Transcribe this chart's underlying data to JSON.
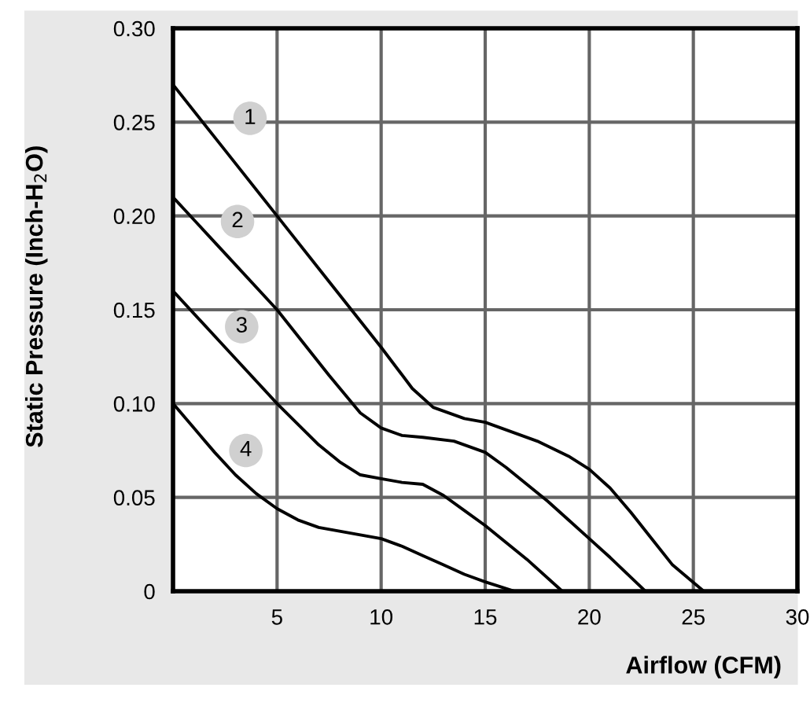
{
  "chart_data": {
    "type": "line",
    "xlabel": "Airflow (CFM)",
    "ylabel": "Static Pressure (Inch-H$_{2}$O)",
    "xlim": [
      0,
      30
    ],
    "ylim": [
      0,
      0.3
    ],
    "xticks": [
      {
        "value": 0,
        "label": null
      },
      5,
      10,
      15,
      20,
      25,
      30
    ],
    "yticks": [
      0,
      0.05,
      {
        "value": 0.1,
        "label": "0.10"
      },
      0.15,
      {
        "value": 0.2,
        "label": "0.20"
      },
      0.25,
      {
        "value": 0.3,
        "label": "0.30"
      }
    ],
    "grid": true,
    "legend": false,
    "marker": "none",
    "line_style": "solid",
    "series": [
      {
        "color": "#000000",
        "x": [
          0,
          2.5,
          5,
          7.5,
          10,
          11.5,
          12.5,
          14,
          15,
          17.5,
          19,
          20,
          21,
          22,
          23,
          24,
          25.5
        ],
        "values": [
          0.27,
          0.235,
          0.2,
          0.165,
          0.13,
          0.108,
          0.098,
          0.092,
          0.09,
          0.08,
          0.072,
          0.065,
          0.055,
          0.042,
          0.028,
          0.014,
          0
        ]
      },
      {
        "color": "#000000",
        "x": [
          0,
          2.5,
          5,
          7.5,
          9,
          10,
          11,
          12,
          13.5,
          15,
          16,
          17,
          18,
          19,
          20,
          21,
          22.7
        ],
        "values": [
          0.21,
          0.18,
          0.15,
          0.115,
          0.095,
          0.087,
          0.083,
          0.082,
          0.08,
          0.074,
          0.066,
          0.057,
          0.048,
          0.038,
          0.028,
          0.018,
          0
        ]
      },
      {
        "color": "#000000",
        "x": [
          0,
          2.5,
          5,
          7,
          8,
          9,
          10,
          11,
          12,
          13,
          14,
          15,
          16,
          17,
          18.7
        ],
        "values": [
          0.16,
          0.13,
          0.1,
          0.078,
          0.069,
          0.062,
          0.06,
          0.058,
          0.057,
          0.051,
          0.043,
          0.035,
          0.026,
          0.017,
          0
        ]
      },
      {
        "color": "#000000",
        "x": [
          0,
          1,
          2,
          3,
          4,
          5,
          6,
          7,
          8,
          9,
          10,
          11,
          12,
          13,
          14,
          15,
          16.4
        ],
        "values": [
          0.1,
          0.087,
          0.074,
          0.062,
          0.052,
          0.044,
          0.038,
          0.034,
          0.032,
          0.03,
          0.028,
          0.024,
          0.019,
          0.014,
          0.009,
          0.005,
          0
        ]
      }
    ],
    "annotations": [
      {
        "text": "1",
        "x": 3.7,
        "y": 0.252
      },
      {
        "text": "2",
        "x": 3.1,
        "y": 0.197
      },
      {
        "text": "3",
        "x": 3.3,
        "y": 0.141
      },
      {
        "text": "4",
        "x": 3.5,
        "y": 0.075
      }
    ]
  }
}
